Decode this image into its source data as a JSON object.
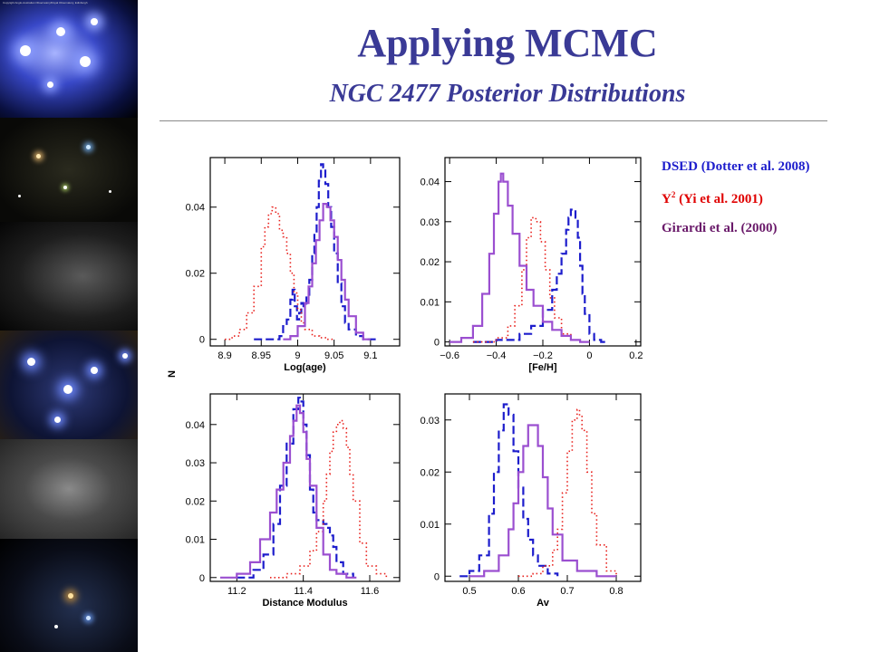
{
  "slide": {
    "title": "Applying MCMC",
    "subtitle": "NGC 2477 Posterior Distributions"
  },
  "photo_strip": {
    "photos": [
      {
        "name": "pleiades-photo",
        "credit": "Copyright Anglo-Australian Observatory/Royal Observatory, Edinburgh"
      },
      {
        "name": "open-cluster-photo-2"
      },
      {
        "name": "dense-cluster-photo-3"
      },
      {
        "name": "pleiades-photo-4"
      },
      {
        "name": "globular-cluster-photo-5"
      },
      {
        "name": "cluster-photo-6"
      }
    ]
  },
  "legend": {
    "items": [
      {
        "label": "DSED (Dotter et al. 2008)",
        "color": "#1d1dcc"
      },
      {
        "label_base": "Y",
        "label_sup": "2",
        "label_rest": " (Yi et al. 2001)",
        "color": "#e00000"
      },
      {
        "label": "Girardi et al. (2000)",
        "color": "#6a1a6a"
      }
    ]
  },
  "shared_ylabel": "N",
  "series_styles": {
    "dsed": {
      "color": "#1d1dcc",
      "style": "dashed"
    },
    "y2": {
      "color": "#e8201c",
      "style": "dotted"
    },
    "girardi": {
      "color": "#9b4fd0",
      "style": "solid"
    }
  },
  "chart_data": [
    {
      "type": "line",
      "panel": "log-age",
      "xlabel": "Log(age)",
      "xlim": [
        8.88,
        9.14
      ],
      "ylim": [
        -0.002,
        0.055
      ],
      "xticks": [
        "8.9",
        "8.95",
        "9",
        "9.05",
        "9.1"
      ],
      "xtick_values": [
        8.9,
        8.95,
        9.0,
        9.05,
        9.1
      ],
      "yticks": [
        "0",
        "0.02",
        "0.04"
      ],
      "ytick_values": [
        0,
        0.02,
        0.04
      ],
      "series": [
        {
          "key": "dsed",
          "x": [
            8.94,
            8.96,
            8.975,
            8.98,
            8.985,
            8.99,
            8.993,
            8.996,
            8.999,
            9.002,
            9.005,
            9.008,
            9.012,
            9.016,
            9.02,
            9.023,
            9.026,
            9.029,
            9.032,
            9.035,
            9.038,
            9.042,
            9.046,
            9.05,
            9.055,
            9.06,
            9.065,
            9.07,
            9.08,
            9.09,
            9.11
          ],
          "y": [
            0,
            0,
            0.001,
            0.004,
            0.006,
            0.012,
            0.015,
            0.01,
            0.006,
            0.008,
            0.011,
            0.01,
            0.013,
            0.018,
            0.026,
            0.032,
            0.04,
            0.048,
            0.053,
            0.052,
            0.047,
            0.04,
            0.034,
            0.026,
            0.017,
            0.01,
            0.005,
            0.003,
            0.001,
            0,
            0
          ]
        },
        {
          "key": "y2",
          "x": [
            8.9,
            8.91,
            8.92,
            8.93,
            8.94,
            8.95,
            8.955,
            8.96,
            8.965,
            8.97,
            8.975,
            8.98,
            8.985,
            8.99,
            8.995,
            9.0,
            9.005,
            9.01,
            9.02,
            9.03,
            9.04,
            9.05
          ],
          "y": [
            0,
            0.001,
            0.003,
            0.008,
            0.016,
            0.028,
            0.034,
            0.038,
            0.04,
            0.038,
            0.033,
            0.031,
            0.026,
            0.02,
            0.014,
            0.009,
            0.005,
            0.003,
            0.001,
            0.0005,
            0,
            0
          ]
        },
        {
          "key": "girardi",
          "x": [
            8.98,
            8.99,
            9.0,
            9.01,
            9.015,
            9.02,
            9.025,
            9.03,
            9.035,
            9.04,
            9.045,
            9.05,
            9.055,
            9.06,
            9.065,
            9.07,
            9.08,
            9.09,
            9.1
          ],
          "y": [
            0,
            0.001,
            0.004,
            0.011,
            0.016,
            0.023,
            0.03,
            0.036,
            0.041,
            0.04,
            0.036,
            0.031,
            0.024,
            0.018,
            0.012,
            0.007,
            0.002,
            0,
            0
          ]
        }
      ]
    },
    {
      "type": "line",
      "panel": "fe-h",
      "xlabel": "[Fe/H]",
      "xlim": [
        -0.62,
        0.22
      ],
      "ylim": [
        -0.001,
        0.046
      ],
      "xticks": [
        "−0.6",
        "−0.4",
        "−0.2",
        "0",
        "0.2"
      ],
      "xtick_values": [
        -0.6,
        -0.4,
        -0.2,
        0,
        0.2
      ],
      "yticks": [
        "0",
        "0.01",
        "0.02",
        "0.03",
        "0.04"
      ],
      "ytick_values": [
        0,
        0.01,
        0.02,
        0.03,
        0.04
      ],
      "series": [
        {
          "key": "dsed",
          "x": [
            -0.5,
            -0.4,
            -0.3,
            -0.25,
            -0.2,
            -0.16,
            -0.14,
            -0.12,
            -0.1,
            -0.09,
            -0.08,
            -0.07,
            -0.06,
            -0.05,
            -0.04,
            -0.03,
            -0.02,
            0,
            0.02,
            0.05,
            0.08
          ],
          "y": [
            0,
            0.0005,
            0.002,
            0.004,
            0.008,
            0.013,
            0.017,
            0.022,
            0.028,
            0.031,
            0.033,
            0.033,
            0.031,
            0.026,
            0.019,
            0.012,
            0.007,
            0.002,
            0.0005,
            0,
            0
          ]
        },
        {
          "key": "y2",
          "x": [
            -0.5,
            -0.45,
            -0.4,
            -0.35,
            -0.32,
            -0.29,
            -0.27,
            -0.25,
            -0.23,
            -0.21,
            -0.19,
            -0.17,
            -0.15,
            -0.12,
            -0.08,
            -0.04,
            0
          ],
          "y": [
            0,
            0,
            0.001,
            0.004,
            0.009,
            0.018,
            0.026,
            0.031,
            0.03,
            0.025,
            0.018,
            0.011,
            0.006,
            0.002,
            0.0005,
            0,
            0
          ]
        },
        {
          "key": "girardi",
          "x": [
            -0.6,
            -0.55,
            -0.5,
            -0.46,
            -0.43,
            -0.41,
            -0.39,
            -0.38,
            -0.37,
            -0.35,
            -0.33,
            -0.3,
            -0.27,
            -0.24,
            -0.2,
            -0.16,
            -0.12,
            -0.08,
            -0.04,
            0
          ],
          "y": [
            0,
            0.001,
            0.004,
            0.012,
            0.022,
            0.032,
            0.04,
            0.042,
            0.04,
            0.034,
            0.027,
            0.019,
            0.013,
            0.009,
            0.005,
            0.003,
            0.0015,
            0.0005,
            0,
            0
          ]
        }
      ]
    },
    {
      "type": "line",
      "panel": "distance-modulus",
      "xlabel": "Distance Modulus",
      "xlim": [
        11.12,
        11.69
      ],
      "ylim": [
        -0.001,
        0.048
      ],
      "xticks": [
        "11.2",
        "11.4",
        "11.6"
      ],
      "xtick_values": [
        11.2,
        11.4,
        11.6
      ],
      "yticks": [
        "0",
        "0.01",
        "0.02",
        "0.03",
        "0.04"
      ],
      "ytick_values": [
        0,
        0.01,
        0.02,
        0.03,
        0.04
      ],
      "series": [
        {
          "key": "dsed",
          "x": [
            11.2,
            11.25,
            11.28,
            11.31,
            11.33,
            11.35,
            11.37,
            11.385,
            11.39,
            11.4,
            11.41,
            11.42,
            11.43,
            11.44,
            11.45,
            11.46,
            11.47,
            11.48,
            11.49,
            11.5,
            11.52,
            11.55
          ],
          "y": [
            0,
            0.002,
            0.006,
            0.014,
            0.024,
            0.035,
            0.044,
            0.047,
            0.046,
            0.04,
            0.032,
            0.023,
            0.017,
            0.015,
            0.015,
            0.014,
            0.013,
            0.011,
            0.008,
            0.004,
            0.001,
            0
          ]
        },
        {
          "key": "y2",
          "x": [
            11.3,
            11.35,
            11.39,
            11.42,
            11.44,
            11.46,
            11.47,
            11.48,
            11.49,
            11.5,
            11.51,
            11.52,
            11.53,
            11.54,
            11.55,
            11.57,
            11.59,
            11.62,
            11.65
          ],
          "y": [
            0,
            0.001,
            0.003,
            0.007,
            0.012,
            0.02,
            0.027,
            0.033,
            0.038,
            0.04,
            0.041,
            0.039,
            0.034,
            0.027,
            0.02,
            0.009,
            0.003,
            0.001,
            0
          ]
        },
        {
          "key": "girardi",
          "x": [
            11.15,
            11.2,
            11.24,
            11.27,
            11.3,
            11.32,
            11.34,
            11.36,
            11.37,
            11.38,
            11.39,
            11.4,
            11.41,
            11.42,
            11.44,
            11.46,
            11.48,
            11.5,
            11.53,
            11.56
          ],
          "y": [
            0,
            0.001,
            0.004,
            0.01,
            0.017,
            0.023,
            0.03,
            0.037,
            0.041,
            0.045,
            0.043,
            0.038,
            0.031,
            0.024,
            0.013,
            0.006,
            0.002,
            0.001,
            0,
            0
          ]
        }
      ]
    },
    {
      "type": "line",
      "panel": "av",
      "xlabel": "Av",
      "xlim": [
        0.45,
        0.85
      ],
      "ylim": [
        -0.001,
        0.035
      ],
      "xticks": [
        "0.5",
        "0.6",
        "0.7",
        "0.8"
      ],
      "xtick_values": [
        0.5,
        0.6,
        0.7,
        0.8
      ],
      "yticks": [
        "0",
        "0.01",
        "0.02",
        "0.03"
      ],
      "ytick_values": [
        0,
        0.01,
        0.02,
        0.03
      ],
      "series": [
        {
          "key": "dsed",
          "x": [
            0.48,
            0.5,
            0.52,
            0.54,
            0.55,
            0.56,
            0.57,
            0.575,
            0.58,
            0.59,
            0.6,
            0.61,
            0.62,
            0.63,
            0.64,
            0.66,
            0.68
          ],
          "y": [
            0,
            0.001,
            0.004,
            0.012,
            0.02,
            0.028,
            0.033,
            0.033,
            0.031,
            0.024,
            0.017,
            0.011,
            0.007,
            0.004,
            0.002,
            0.0005,
            0
          ]
        },
        {
          "key": "y2",
          "x": [
            0.6,
            0.63,
            0.65,
            0.67,
            0.68,
            0.69,
            0.7,
            0.71,
            0.72,
            0.725,
            0.73,
            0.74,
            0.75,
            0.76,
            0.78,
            0.8
          ],
          "y": [
            0,
            0.0005,
            0.002,
            0.005,
            0.009,
            0.016,
            0.024,
            0.03,
            0.032,
            0.031,
            0.028,
            0.02,
            0.012,
            0.006,
            0.001,
            0
          ]
        },
        {
          "key": "girardi",
          "x": [
            0.5,
            0.53,
            0.56,
            0.58,
            0.59,
            0.6,
            0.61,
            0.62,
            0.63,
            0.64,
            0.65,
            0.66,
            0.67,
            0.69,
            0.72,
            0.76,
            0.8
          ],
          "y": [
            0,
            0.001,
            0.004,
            0.009,
            0.014,
            0.02,
            0.025,
            0.029,
            0.029,
            0.025,
            0.019,
            0.013,
            0.008,
            0.003,
            0.001,
            0,
            0
          ]
        }
      ]
    }
  ]
}
